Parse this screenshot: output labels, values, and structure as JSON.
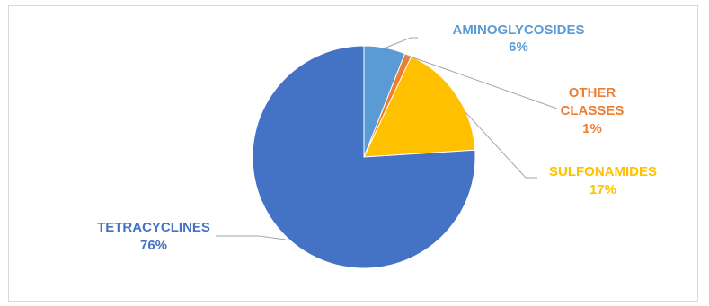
{
  "chart_data": {
    "type": "pie",
    "title": "",
    "slices": [
      {
        "name": "AMINOGLYCOSIDES",
        "value": 6,
        "label": "6%",
        "color": "#5b9bd5",
        "label_lines": [
          "AMINOGLYCOSIDES",
          "6%"
        ]
      },
      {
        "name": "OTHER CLASSES",
        "value": 1,
        "label": "1%",
        "color": "#ed7d31",
        "label_lines": [
          "OTHER",
          "CLASSES",
          "1%"
        ]
      },
      {
        "name": "SULFONAMIDES",
        "value": 17,
        "label": "17%",
        "color": "#ffc000",
        "label_lines": [
          "SULFONAMIDES",
          "17%"
        ]
      },
      {
        "name": "TETRACYCLINES",
        "value": 76,
        "label": "76%",
        "color": "#4472c4",
        "label_lines": [
          "TETRACYCLINES",
          "76%"
        ]
      }
    ],
    "start_angle": "12 o'clock",
    "direction": "clockwise",
    "legend": "none",
    "label_style": "outside with leader lines"
  }
}
